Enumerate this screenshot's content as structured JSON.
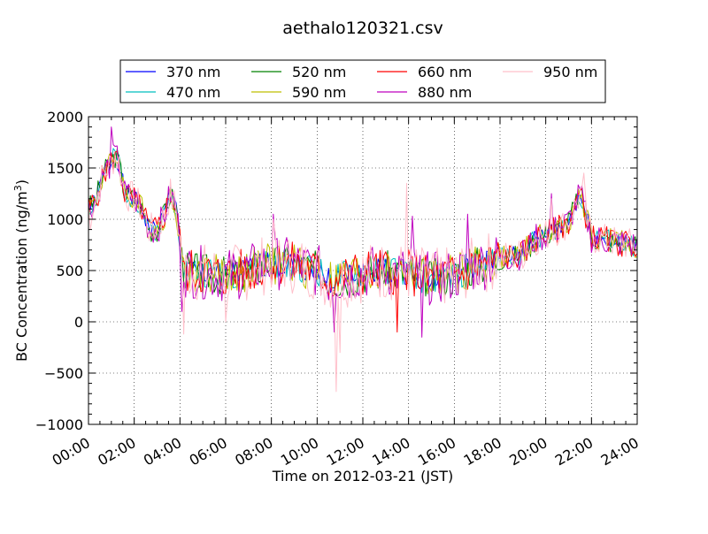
{
  "chart_data": {
    "type": "line",
    "title": "aethalo120321.csv",
    "xlabel": "Time on 2012-03-21 (JST)",
    "ylabel": {
      "main": "BC Concentration (ng/m",
      "sup": "3",
      "end": ")"
    },
    "xlim": [
      "00:00",
      "24:00"
    ],
    "ylim": [
      -1000,
      2000
    ],
    "x_ticks": [
      "00:00",
      "02:00",
      "04:00",
      "06:00",
      "08:00",
      "10:00",
      "12:00",
      "14:00",
      "16:00",
      "18:00",
      "20:00",
      "22:00",
      "24:00"
    ],
    "y_ticks": [
      -1000,
      -500,
      0,
      500,
      1000,
      1500,
      2000
    ],
    "y_tick_labels": [
      "−1000",
      "−500",
      "0",
      "500",
      "1000",
      "1500",
      "2000"
    ],
    "grid": true,
    "legend_position": "top",
    "sample_interval_minutes": 5,
    "x_unit": "time of day (HH:MM)",
    "series": [
      {
        "name": "370 nm",
        "color": "#0000ff",
        "noise": 0.4,
        "seed": 1
      },
      {
        "name": "470 nm",
        "color": "#00bfbf",
        "noise": 0.6,
        "seed": 2
      },
      {
        "name": "520 nm",
        "color": "#008000",
        "noise": 0.8,
        "seed": 3
      },
      {
        "name": "590 nm",
        "color": "#bfbf00",
        "noise": 0.9,
        "seed": 4
      },
      {
        "name": "660 nm",
        "color": "#ff0000",
        "noise": 1.0,
        "seed": 5
      },
      {
        "name": "880 nm",
        "color": "#bf00bf",
        "noise": 1.2,
        "seed": 6
      },
      {
        "name": "950 nm",
        "color": "#ffc0cb",
        "noise": 1.4,
        "seed": 7
      }
    ],
    "baseline": [
      {
        "t": "00:00",
        "v": 1100
      },
      {
        "t": "00:20",
        "v": 1200
      },
      {
        "t": "00:40",
        "v": 1450
      },
      {
        "t": "01:00",
        "v": 1550
      },
      {
        "t": "01:10",
        "v": 1620
      },
      {
        "t": "01:20",
        "v": 1550
      },
      {
        "t": "01:35",
        "v": 1250
      },
      {
        "t": "02:00",
        "v": 1200
      },
      {
        "t": "02:20",
        "v": 1100
      },
      {
        "t": "02:40",
        "v": 900
      },
      {
        "t": "03:00",
        "v": 900
      },
      {
        "t": "03:20",
        "v": 1050
      },
      {
        "t": "03:35",
        "v": 1250
      },
      {
        "t": "03:50",
        "v": 1100
      },
      {
        "t": "04:00",
        "v": 800
      },
      {
        "t": "04:10",
        "v": 500
      },
      {
        "t": "05:00",
        "v": 480
      },
      {
        "t": "06:00",
        "v": 450
      },
      {
        "t": "07:00",
        "v": 500
      },
      {
        "t": "08:00",
        "v": 580
      },
      {
        "t": "09:00",
        "v": 560
      },
      {
        "t": "10:00",
        "v": 500
      },
      {
        "t": "10:30",
        "v": 400
      },
      {
        "t": "11:00",
        "v": 420
      },
      {
        "t": "12:00",
        "v": 480
      },
      {
        "t": "13:00",
        "v": 500
      },
      {
        "t": "14:00",
        "v": 480
      },
      {
        "t": "15:00",
        "v": 420
      },
      {
        "t": "16:00",
        "v": 450
      },
      {
        "t": "17:00",
        "v": 550
      },
      {
        "t": "18:00",
        "v": 620
      },
      {
        "t": "19:00",
        "v": 660
      },
      {
        "t": "19:30",
        "v": 800
      },
      {
        "t": "20:00",
        "v": 850
      },
      {
        "t": "20:30",
        "v": 900
      },
      {
        "t": "21:00",
        "v": 980
      },
      {
        "t": "21:30",
        "v": 1250
      },
      {
        "t": "21:45",
        "v": 1050
      },
      {
        "t": "22:00",
        "v": 820
      },
      {
        "t": "23:00",
        "v": 780
      },
      {
        "t": "24:00",
        "v": 740
      }
    ],
    "spikes": [
      {
        "series": 6,
        "t": "04:10",
        "v": -120
      },
      {
        "series": 5,
        "t": "04:05",
        "v": 100
      },
      {
        "series": 6,
        "t": "06:00",
        "v": 0
      },
      {
        "series": 5,
        "t": "08:05",
        "v": 1050
      },
      {
        "series": 6,
        "t": "08:05",
        "v": 1000
      },
      {
        "series": 6,
        "t": "10:50",
        "v": -680
      },
      {
        "series": 5,
        "t": "10:45",
        "v": -100
      },
      {
        "series": 6,
        "t": "11:00",
        "v": -300
      },
      {
        "series": 6,
        "t": "13:55",
        "v": 1350
      },
      {
        "series": 5,
        "t": "14:10",
        "v": 1030
      },
      {
        "series": 4,
        "t": "13:30",
        "v": -100
      },
      {
        "series": 5,
        "t": "14:35",
        "v": -150
      },
      {
        "series": 5,
        "t": "16:35",
        "v": 1050
      },
      {
        "series": 6,
        "t": "20:15",
        "v": 1200
      },
      {
        "series": 5,
        "t": "20:15",
        "v": 1250
      },
      {
        "series": 6,
        "t": "21:40",
        "v": 1450
      },
      {
        "series": 5,
        "t": "01:00",
        "v": 1900
      },
      {
        "series": 6,
        "t": "00:05",
        "v": 900
      }
    ]
  }
}
